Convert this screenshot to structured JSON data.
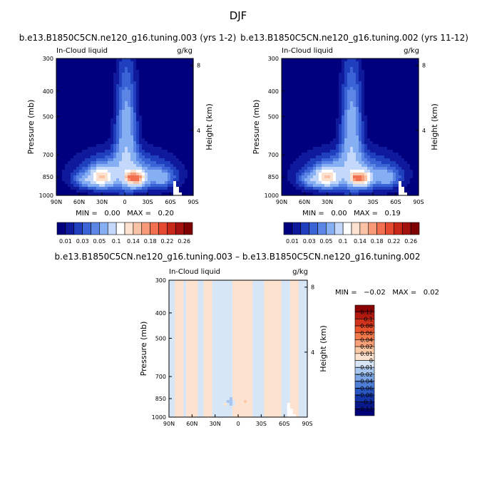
{
  "figure": {
    "title": "DJF"
  },
  "panels": [
    {
      "id": "p1",
      "title": "b.e13.B1850C5CN.ne120_g16.tuning.003 (yrs 1-2)",
      "left_label": "In-Cloud liquid",
      "right_label": "g/kg",
      "stats": "MIN =   0.00   MAX =   0.20"
    },
    {
      "id": "p2",
      "title": "b.e13.B1850C5CN.ne120_g16.tuning.002 (yrs 11-12)",
      "left_label": "In-Cloud liquid",
      "right_label": "g/kg",
      "stats": "MIN =   0.00   MAX =   0.19"
    },
    {
      "id": "p3",
      "title": "b.e13.B1850C5CN.ne120_g16.tuning.003 – b.e13.B1850C5CN.ne120_g16.tuning.002",
      "left_label": "In-Cloud liquid",
      "right_label": "g/kg",
      "stats": "MIN =   −0.02   MAX =   0.02"
    }
  ],
  "chart_data": [
    {
      "type": "heatmap",
      "panel": "p1",
      "xlabel": "",
      "ylabel": "Pressure (mb)",
      "y2label": "Height (km)",
      "x_ticks": [
        "90N",
        "60N",
        "30N",
        "0",
        "30S",
        "60S",
        "90S"
      ],
      "x_tick_values": [
        90,
        60,
        30,
        0,
        -30,
        -60,
        -90
      ],
      "xlim": [
        90,
        -90
      ],
      "y_ticks": [
        "300",
        "400",
        "500",
        "700",
        "850",
        "1000"
      ],
      "y_tick_values": [
        300,
        400,
        500,
        700,
        850,
        1000
      ],
      "ylim": [
        1000,
        300
      ],
      "y_scale": "log",
      "y2_ticks": [
        "8",
        "4"
      ],
      "y2_tick_values": [
        8,
        4
      ],
      "min": 0.0,
      "max": 0.2,
      "blobs": [
        {
          "lat": 0,
          "p": 820,
          "dlat": 62,
          "dp": 150,
          "v": 0.055
        },
        {
          "lat": -2,
          "p": 560,
          "dlat": 14,
          "dp": 280,
          "v": 0.06
        },
        {
          "lat": 30,
          "p": 850,
          "dlat": 14,
          "dp": 70,
          "v": 0.1
        },
        {
          "lat": -15,
          "p": 860,
          "dlat": 12,
          "dp": 55,
          "v": 0.14
        },
        {
          "lat": -5,
          "p": 860,
          "dlat": 5,
          "dp": 35,
          "v": 0.045
        },
        {
          "lat": 52,
          "p": 875,
          "dlat": 16,
          "dp": 60,
          "v": 0.035
        },
        {
          "lat": -50,
          "p": 860,
          "dlat": 16,
          "dp": 70,
          "v": 0.035
        }
      ]
    },
    {
      "type": "heatmap",
      "panel": "p2",
      "xlabel": "",
      "ylabel": "Pressure (mb)",
      "y2label": "Height (km)",
      "x_ticks": [
        "90N",
        "60N",
        "30N",
        "0",
        "30S",
        "60S",
        "90S"
      ],
      "x_tick_values": [
        90,
        60,
        30,
        0,
        -30,
        -60,
        -90
      ],
      "xlim": [
        90,
        -90
      ],
      "y_ticks": [
        "300",
        "400",
        "500",
        "700",
        "850",
        "1000"
      ],
      "y_tick_values": [
        300,
        400,
        500,
        700,
        850,
        1000
      ],
      "ylim": [
        1000,
        300
      ],
      "y_scale": "log",
      "y2_ticks": [
        "8",
        "4"
      ],
      "y2_tick_values": [
        8,
        4
      ],
      "min": 0.0,
      "max": 0.19,
      "blobs": [
        {
          "lat": 0,
          "p": 820,
          "dlat": 62,
          "dp": 150,
          "v": 0.055
        },
        {
          "lat": -2,
          "p": 560,
          "dlat": 14,
          "dp": 280,
          "v": 0.06
        },
        {
          "lat": 30,
          "p": 850,
          "dlat": 14,
          "dp": 70,
          "v": 0.1
        },
        {
          "lat": -15,
          "p": 860,
          "dlat": 12,
          "dp": 55,
          "v": 0.13
        },
        {
          "lat": -5,
          "p": 860,
          "dlat": 5,
          "dp": 35,
          "v": 0.045
        },
        {
          "lat": 52,
          "p": 875,
          "dlat": 16,
          "dp": 60,
          "v": 0.035
        },
        {
          "lat": -50,
          "p": 860,
          "dlat": 16,
          "dp": 70,
          "v": 0.035
        }
      ]
    },
    {
      "type": "heatmap",
      "panel": "p3",
      "xlabel": "",
      "ylabel": "Pressure (mb)",
      "y2label": "Height (km)",
      "x_ticks": [
        "90N",
        "60N",
        "30N",
        "0",
        "30S",
        "60S",
        "90S"
      ],
      "x_tick_values": [
        90,
        60,
        30,
        0,
        -30,
        -60,
        -90
      ],
      "xlim": [
        90,
        -90
      ],
      "y_ticks": [
        "300",
        "400",
        "500",
        "700",
        "850",
        "1000"
      ],
      "y_tick_values": [
        300,
        400,
        500,
        700,
        850,
        1000
      ],
      "ylim": [
        1000,
        300
      ],
      "y_scale": "log",
      "y2_ticks": [
        "8",
        "4"
      ],
      "y2_tick_values": [
        8,
        4
      ],
      "min": -0.02,
      "max": 0.02,
      "lat_bands": [
        {
          "from": 90,
          "to": 84,
          "v": -0.004
        },
        {
          "from": 84,
          "to": 70,
          "v": 0.002
        },
        {
          "from": 70,
          "to": 66,
          "v": -0.003
        },
        {
          "from": 66,
          "to": 52,
          "v": 0.002
        },
        {
          "from": 52,
          "to": 44,
          "v": -0.004
        },
        {
          "from": 44,
          "to": 32,
          "v": 0.002
        },
        {
          "from": 32,
          "to": 24,
          "v": -0.004
        },
        {
          "from": 24,
          "to": 8,
          "v": -0.005
        },
        {
          "from": 8,
          "to": -20,
          "v": 0.002
        },
        {
          "from": -20,
          "to": -32,
          "v": -0.004
        },
        {
          "from": -32,
          "to": -58,
          "v": 0.002
        },
        {
          "from": -58,
          "to": -68,
          "v": -0.004
        },
        {
          "from": -68,
          "to": -80,
          "v": 0.002
        },
        {
          "from": -80,
          "to": -90,
          "v": -0.004
        }
      ],
      "blobs": [
        {
          "lat": 15,
          "p": 900,
          "dlat": 8,
          "dp": 60,
          "v": -0.005
        },
        {
          "lat": 10,
          "p": 870,
          "dlat": 4,
          "dp": 30,
          "v": -0.006
        },
        {
          "lat": 16,
          "p": 895,
          "dlat": 3,
          "dp": 18,
          "v": 0.012
        },
        {
          "lat": -10,
          "p": 870,
          "dlat": 3,
          "dp": 20,
          "v": 0.012
        }
      ]
    }
  ],
  "colorbars": [
    {
      "id": "cb1",
      "orientation": "horizontal",
      "levels": [
        0.01,
        0.02,
        0.03,
        0.04,
        0.05,
        0.07,
        0.1,
        0.12,
        0.14,
        0.16,
        0.18,
        0.2,
        0.22,
        0.24,
        0.26
      ],
      "labels": [
        "0.01",
        "0.03",
        "0.05",
        "0.1",
        "0.14",
        "0.18",
        "0.22",
        "0.26"
      ],
      "colors": [
        "#00007f",
        "#0e1a9b",
        "#1f3fbf",
        "#3a63d6",
        "#5b86e6",
        "#86aef2",
        "#c3d8fa",
        "#ffffff",
        "#fde1cf",
        "#fbc3a5",
        "#f89a77",
        "#f2704f",
        "#e34a2f",
        "#c82817",
        "#a4120f",
        "#7f0000"
      ]
    },
    {
      "id": "cb2",
      "orientation": "horizontal",
      "levels": [
        0.01,
        0.02,
        0.03,
        0.04,
        0.05,
        0.07,
        0.1,
        0.12,
        0.14,
        0.16,
        0.18,
        0.2,
        0.22,
        0.24,
        0.26
      ],
      "labels": [
        "0.01",
        "0.03",
        "0.05",
        "0.1",
        "0.14",
        "0.18",
        "0.22",
        "0.26"
      ],
      "colors": [
        "#00007f",
        "#0e1a9b",
        "#1f3fbf",
        "#3a63d6",
        "#5b86e6",
        "#86aef2",
        "#c3d8fa",
        "#ffffff",
        "#fde1cf",
        "#fbc3a5",
        "#f89a77",
        "#f2704f",
        "#e34a2f",
        "#c82817",
        "#a4120f",
        "#7f0000"
      ]
    },
    {
      "id": "cb3",
      "orientation": "vertical",
      "levels": [
        0.12,
        0.1,
        0.08,
        0.06,
        0.04,
        0.02,
        0.01,
        0,
        -0.01,
        -0.02,
        -0.04,
        -0.06,
        -0.08,
        -0.1,
        -0.12
      ],
      "labels": [
        "0.12",
        "0.1",
        "0.08",
        "0.06",
        "0.04",
        "0.02",
        "0.01",
        "0",
        "−0.01",
        "−0.02",
        "−0.04",
        "−0.06",
        "−0.08",
        "−0.1",
        "−0.12"
      ],
      "colors": [
        "#8b0000",
        "#b21a10",
        "#d1331c",
        "#e9542d",
        "#f47a4c",
        "#f8a077",
        "#fcc9a6",
        "#fde3cf",
        "#d6e6f7",
        "#a9c7ee",
        "#7ba5e4",
        "#4f7fd8",
        "#2a56c4",
        "#1434a8",
        "#0a1a8c",
        "#00007a"
      ]
    }
  ]
}
